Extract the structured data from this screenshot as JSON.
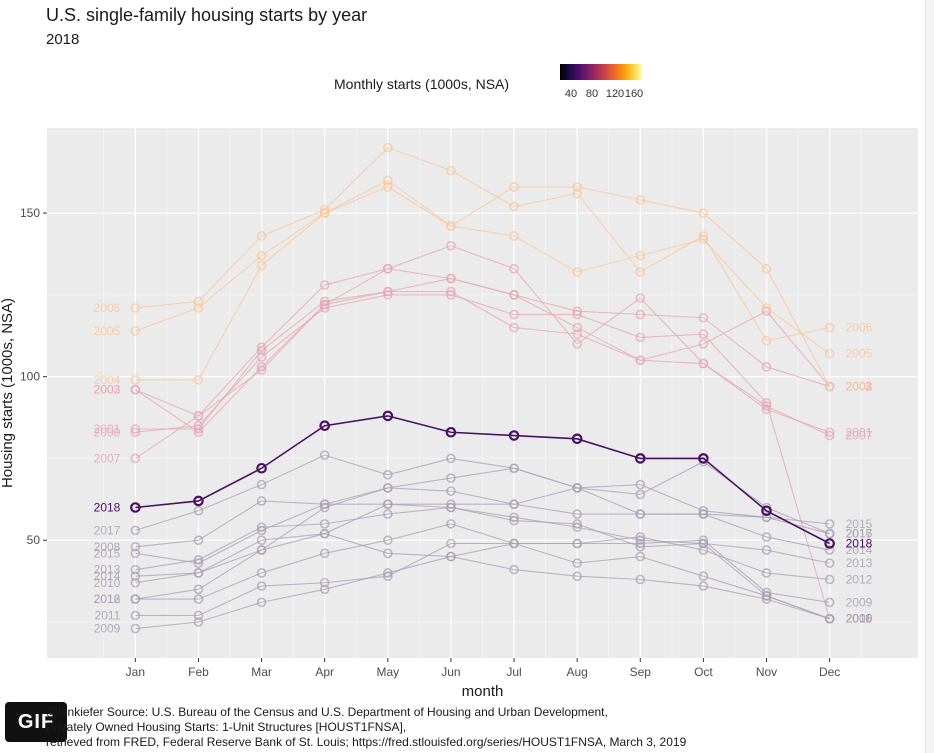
{
  "title": "U.S. single-family housing starts by year",
  "subtitle": "2018",
  "legend": {
    "title": "Monthly starts (1000s, NSA)",
    "ticks": [
      "40",
      "80",
      "120",
      "160"
    ],
    "colormap": "inferno"
  },
  "badge": "GIF",
  "caption": [
    "@lenkiefer Source: U.S. Bureau of the Census and U.S. Department of Housing and Urban Development,",
    "Privately Owned Housing Starts: 1-Unit Structures [HOUST1FNSA],",
    "retrieved from FRED, Federal Reserve Bank of St. Louis; https://fred.stlouisfed.org/series/HOUST1FNSA, March 3, 2019"
  ],
  "chart_data": {
    "type": "line",
    "title": "U.S. single-family housing starts by year",
    "subtitle": "2018",
    "xlabel": "month",
    "ylabel": "Housing starts (1000s, NSA)",
    "categories": [
      "Jan",
      "Feb",
      "Mar",
      "Apr",
      "May",
      "Jun",
      "Jul",
      "Aug",
      "Sep",
      "Oct",
      "Nov",
      "Dec"
    ],
    "ylim": [
      14,
      176
    ],
    "yticks": [
      50,
      100,
      150
    ],
    "grid": true,
    "legend_placement": "top",
    "highlight": "2018",
    "series": [
      {
        "name": "2000",
        "values": [
          83,
          85,
          106,
          121,
          125,
          125,
          119,
          119,
          112,
          113,
          92,
          26
        ]
      },
      {
        "name": "2001",
        "values": [
          84,
          84,
          108,
          123,
          126,
          126,
          115,
          113,
          105,
          104,
          90,
          83
        ]
      },
      {
        "name": "2002",
        "values": [
          96,
          83,
          103,
          122,
          126,
          130,
          125,
          120,
          119,
          118,
          103,
          97
        ]
      },
      {
        "name": "2003",
        "values": [
          96,
          88,
          102,
          122,
          133,
          130,
          125,
          115,
          105,
          110,
          120,
          97
        ]
      },
      {
        "name": "2004",
        "values": [
          99,
          99,
          134,
          150,
          158,
          146,
          158,
          158,
          154,
          150,
          133,
          97
        ]
      },
      {
        "name": "2005",
        "values": [
          114,
          121,
          137,
          150,
          160,
          146,
          143,
          132,
          137,
          142,
          121,
          107
        ]
      },
      {
        "name": "2006",
        "values": [
          121,
          123,
          143,
          151,
          170,
          163,
          152,
          156,
          132,
          143,
          111,
          115
        ]
      },
      {
        "name": "2007",
        "values": [
          75,
          88,
          109,
          128,
          133,
          140,
          133,
          110,
          124,
          104,
          91,
          82
        ]
      },
      {
        "name": "2008",
        "values": [
          48,
          50,
          62,
          61,
          61,
          60,
          57,
          54,
          50,
          49,
          33,
          26
        ]
      },
      {
        "name": "2009",
        "values": [
          23,
          25,
          31,
          35,
          40,
          45,
          49,
          49,
          49,
          50,
          34,
          31
        ]
      },
      {
        "name": "2010",
        "values": [
          37,
          40,
          50,
          52,
          46,
          45,
          41,
          39,
          38,
          36,
          32,
          26
        ]
      },
      {
        "name": "2011",
        "values": [
          27,
          27,
          36,
          37,
          39,
          49,
          49,
          43,
          45,
          39,
          33,
          26
        ]
      },
      {
        "name": "2012",
        "values": [
          32,
          32,
          40,
          46,
          50,
          55,
          49,
          49,
          51,
          47,
          40,
          38
        ]
      },
      {
        "name": "2013",
        "values": [
          41,
          44,
          54,
          55,
          58,
          60,
          56,
          55,
          48,
          49,
          47,
          43
        ]
      },
      {
        "name": "2014",
        "values": [
          39,
          40,
          47,
          52,
          61,
          61,
          61,
          58,
          58,
          58,
          51,
          47
        ]
      },
      {
        "name": "2015",
        "values": [
          46,
          43,
          53,
          61,
          66,
          65,
          61,
          66,
          58,
          58,
          57,
          55
        ]
      },
      {
        "name": "2016",
        "values": [
          32,
          35,
          47,
          60,
          66,
          69,
          72,
          66,
          67,
          59,
          57,
          52
        ]
      },
      {
        "name": "2017",
        "values": [
          53,
          59,
          67,
          76,
          70,
          75,
          72,
          66,
          64,
          74,
          60,
          52
        ]
      },
      {
        "name": "2018",
        "values": [
          60,
          62,
          72,
          85,
          88,
          83,
          82,
          81,
          75,
          75,
          59,
          49
        ]
      }
    ]
  },
  "colors": {
    "panel": "#ebebeb",
    "grid_major": "#ffffff",
    "grid_minor": "#f6f6f6",
    "highlight_series": "#4a1063"
  }
}
